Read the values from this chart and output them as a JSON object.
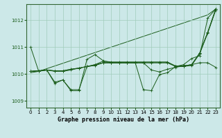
{
  "xlabel": "Graphe pression niveau de la mer (hPa)",
  "bg_color": "#cce8e8",
  "plot_bg": "#cce8e8",
  "line_color": "#1a5c1a",
  "border_color": "#336633",
  "xlim": [
    -0.5,
    23.5
  ],
  "ylim": [
    1008.75,
    1012.6
  ],
  "yticks": [
    1009,
    1010,
    1011,
    1012
  ],
  "xticks": [
    0,
    1,
    2,
    3,
    4,
    5,
    6,
    7,
    8,
    9,
    10,
    11,
    12,
    13,
    14,
    15,
    16,
    17,
    18,
    19,
    20,
    21,
    22,
    23
  ],
  "series": [
    [
      1011.0,
      1010.1,
      1010.15,
      1009.7,
      1009.78,
      1009.42,
      1009.42,
      1010.28,
      1010.35,
      1010.48,
      1010.45,
      1010.45,
      1010.45,
      1010.45,
      1010.45,
      1010.45,
      1010.45,
      1010.45,
      1010.3,
      1010.3,
      1010.35,
      1010.78,
      1011.55,
      1012.42
    ],
    [
      1010.1,
      1010.12,
      1010.15,
      1010.12,
      1010.12,
      1010.18,
      1010.22,
      1010.28,
      1010.32,
      1010.42,
      1010.42,
      1010.42,
      1010.42,
      1010.42,
      1010.42,
      1010.15,
      1010.08,
      1010.18,
      1010.25,
      1010.3,
      1010.35,
      1010.42,
      1010.42,
      1010.25
    ],
    [
      1010.1,
      1010.12,
      1010.15,
      1010.12,
      1010.12,
      1010.18,
      1010.22,
      1010.28,
      1010.32,
      1010.42,
      1010.42,
      1010.42,
      1010.42,
      1010.42,
      1010.42,
      1010.42,
      1010.42,
      1010.42,
      1010.3,
      1010.3,
      1010.35,
      1010.78,
      1011.55,
      1012.42
    ],
    [
      1010.1,
      1010.12,
      1010.15,
      1009.65,
      1009.78,
      1009.38,
      1009.38,
      1010.55,
      1010.72,
      1010.5,
      1010.42,
      1010.42,
      1010.42,
      1010.42,
      1009.42,
      1009.38,
      1009.98,
      1010.05,
      1010.28,
      1010.35,
      1010.58,
      1010.68,
      1012.08,
      1012.42
    ],
    [
      1010.1,
      1010.12,
      1010.15,
      1010.1,
      1010.1,
      1010.15,
      1010.22,
      1010.28,
      1010.35,
      1010.42,
      1010.42,
      1010.42,
      1010.42,
      1010.42,
      1010.42,
      1010.42,
      1010.42,
      1010.42,
      1010.28,
      1010.28,
      1010.32,
      1010.75,
      1011.52,
      1012.38
    ]
  ],
  "linear_line": [
    1010.05,
    1010.1,
    1010.2,
    1010.3,
    1010.4,
    1010.5,
    1010.6,
    1010.7,
    1010.8,
    1010.9,
    1011.0,
    1011.1,
    1011.2,
    1011.3,
    1011.4,
    1011.5,
    1011.6,
    1011.7,
    1011.8,
    1011.9,
    1012.0,
    1012.1,
    1012.2,
    1012.42
  ],
  "markersize": 2.5,
  "linewidth": 0.7,
  "xlabel_fontsize": 6,
  "tick_fontsize": 5
}
